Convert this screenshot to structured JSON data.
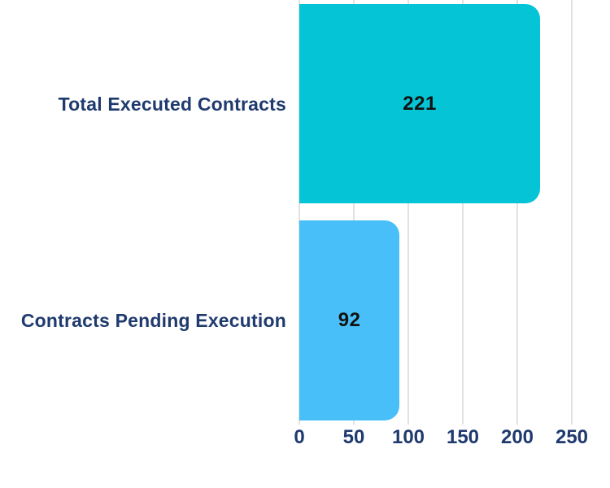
{
  "chart_data": {
    "type": "bar",
    "orientation": "horizontal",
    "categories": [
      "Total Executed Contracts",
      "Contracts Pending Execution"
    ],
    "values": [
      221,
      92
    ],
    "value_labels": [
      "221",
      "92"
    ],
    "xlim": [
      0,
      250
    ],
    "axis_ticks": [
      0,
      50,
      100,
      150,
      200,
      250
    ],
    "axis_tick_labels": [
      "0",
      "50",
      "100",
      "150",
      "200",
      "250"
    ],
    "grid": "vertical",
    "legend": "none",
    "title": "",
    "xlabel": "",
    "ylabel": "",
    "colors": {
      "bars": [
        "#04C4D5",
        "#48BFF8"
      ],
      "category_label": "#1F3A6E",
      "tick_label": "#1F3A6E",
      "value_label": "#121212",
      "gridline": "#E2E2E2",
      "background": "#FFFFFF"
    }
  }
}
